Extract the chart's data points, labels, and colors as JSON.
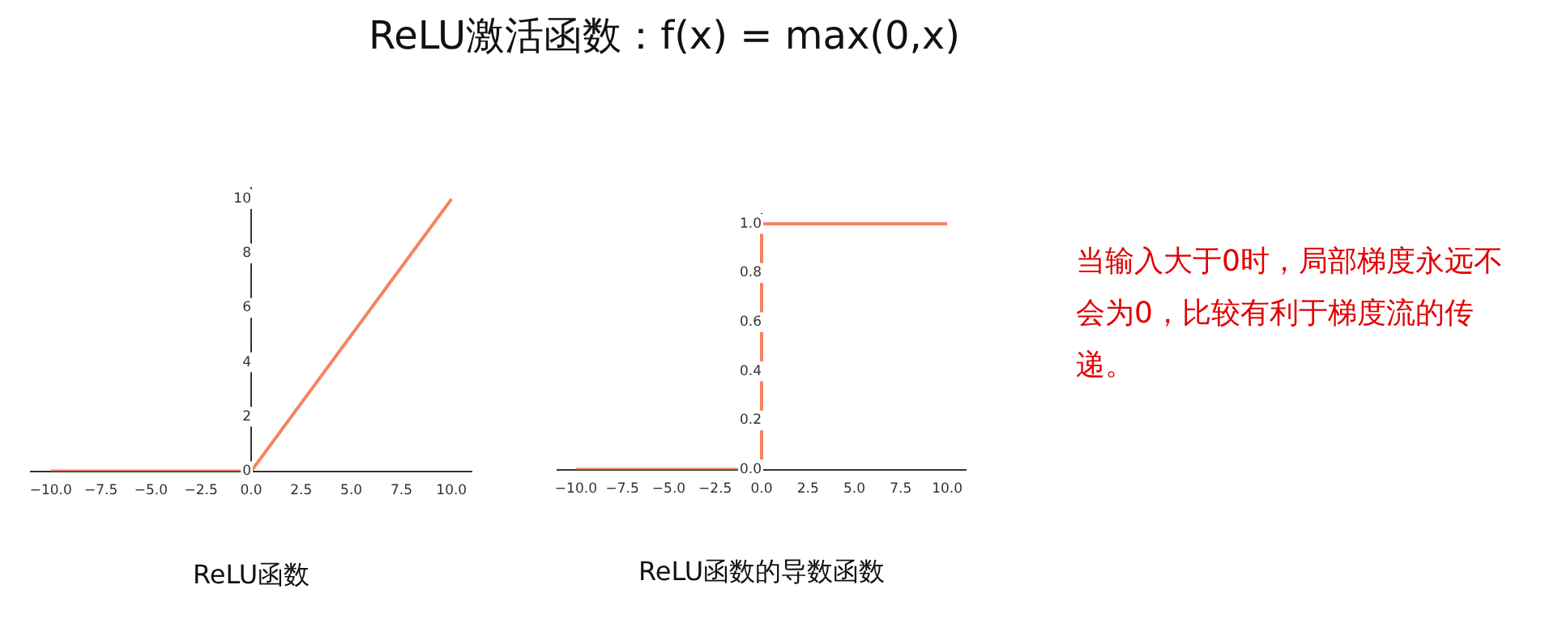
{
  "chart_data": [
    {
      "type": "line",
      "title": "ReLU激活函数：f(x) = max(0,x)",
      "xlabel": "ReLU函数",
      "x": [
        -10,
        0,
        10
      ],
      "series": [
        {
          "color": "#f4845f",
          "values": [
            0,
            0,
            10
          ]
        }
      ],
      "xlim": [
        -11,
        11
      ],
      "ylim": [
        0,
        10.4
      ],
      "xticks": [
        {
          "value": -10,
          "label": "−10.0"
        },
        {
          "value": -7.5,
          "label": "−7.5"
        },
        {
          "value": -5,
          "label": "−5.0"
        },
        {
          "value": -2.5,
          "label": "−2.5"
        },
        {
          "value": 0,
          "label": "0.0"
        },
        {
          "value": 2.5,
          "label": "2.5"
        },
        {
          "value": 5,
          "label": "5.0"
        },
        {
          "value": 7.5,
          "label": "7.5"
        },
        {
          "value": 10,
          "label": "10.0"
        }
      ],
      "yticks": [
        0,
        2,
        4,
        6,
        8,
        10
      ],
      "grid": false,
      "legend": false,
      "marker": "none"
    },
    {
      "type": "line",
      "xlabel": "ReLU函数的导数函数",
      "x": [
        -10,
        0,
        0,
        10
      ],
      "series": [
        {
          "color": "#f4845f",
          "values": [
            0,
            0,
            1,
            1
          ]
        }
      ],
      "xlim": [
        -11,
        11
      ],
      "ylim": [
        0,
        1.04
      ],
      "xticks": [
        {
          "value": -10,
          "label": "−10.0"
        },
        {
          "value": -7.5,
          "label": "−7.5"
        },
        {
          "value": -5,
          "label": "−5.0"
        },
        {
          "value": -2.5,
          "label": "−2.5"
        },
        {
          "value": 0,
          "label": "0.0"
        },
        {
          "value": 2.5,
          "label": "2.5"
        },
        {
          "value": 5,
          "label": "5.0"
        },
        {
          "value": 7.5,
          "label": "7.5"
        },
        {
          "value": 10,
          "label": "10.0"
        }
      ],
      "yticks": [
        {
          "value": 0,
          "label": "0.0"
        },
        {
          "value": 0.2,
          "label": "0.2"
        },
        {
          "value": 0.4,
          "label": "0.4"
        },
        {
          "value": 0.6,
          "label": "0.6"
        },
        {
          "value": 0.8,
          "label": "0.8"
        },
        {
          "value": 1,
          "label": "1.0"
        }
      ],
      "annotations": [
        "当输入大于0时，局部梯度永远不会为0，比较有利于梯度流的传递。"
      ],
      "grid": false,
      "legend": false,
      "marker": "none"
    }
  ]
}
